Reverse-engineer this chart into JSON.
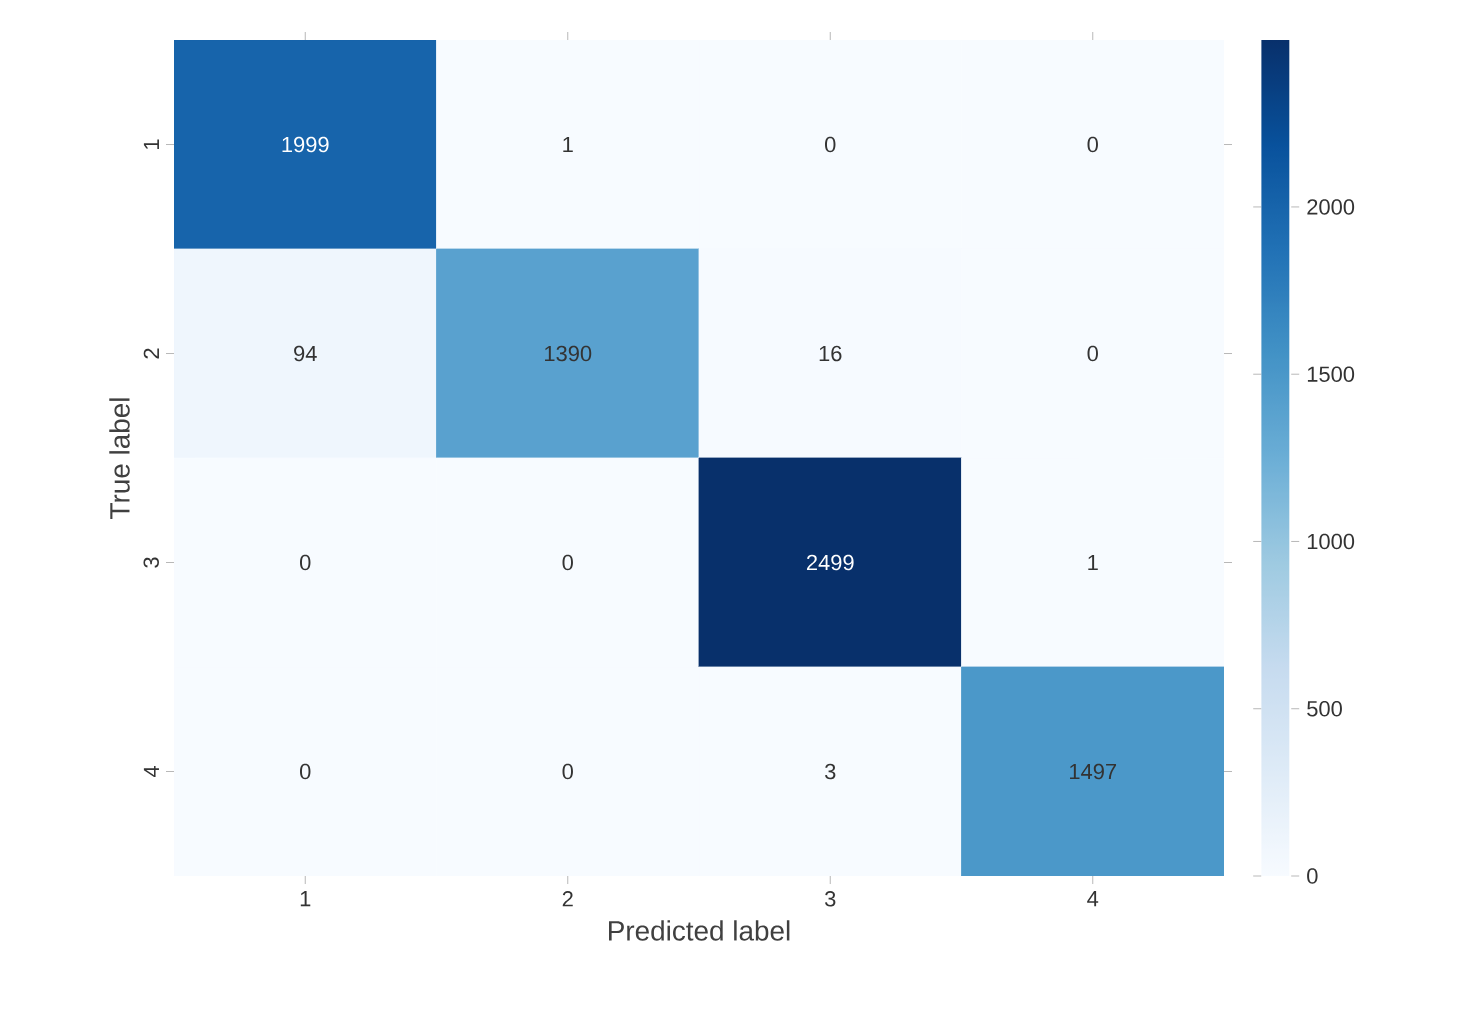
{
  "chart_data": {
    "type": "heatmap",
    "xlabel": "Predicted label",
    "ylabel": "True label",
    "categories": [
      "1",
      "2",
      "3",
      "4"
    ],
    "y_categories": [
      "1",
      "2",
      "3",
      "4"
    ],
    "cells": [
      [
        1999,
        1,
        0,
        0
      ],
      [
        94,
        1390,
        16,
        0
      ],
      [
        0,
        0,
        2499,
        1
      ],
      [
        0,
        0,
        3,
        1497
      ]
    ],
    "data_labels": true,
    "clim": [
      0,
      2499
    ],
    "cticks": [
      0,
      500,
      1000,
      1500,
      2000
    ]
  }
}
